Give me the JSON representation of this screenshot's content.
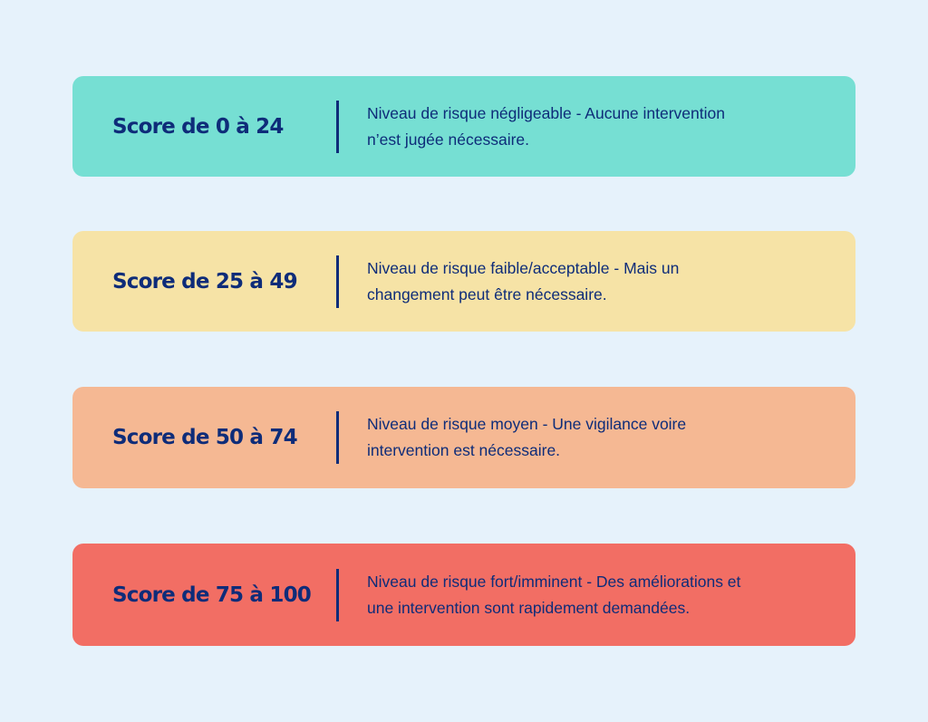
{
  "colors": {
    "background": "#E6F2FB",
    "text": "#0E2C79"
  },
  "cards": [
    {
      "title": "Score de 0 à 24",
      "description": "Niveau de risque négligeable -  Aucune intervention\nn’est jugée nécessaire.",
      "color": "#76DFD3"
    },
    {
      "title": "Score de 25 à 49",
      "description": "Niveau de risque faible/acceptable -  Mais un\nchangement peut être nécessaire.",
      "color": "#F6E3A6"
    },
    {
      "title": "Score de 50 à 74",
      "description": "Niveau de risque moyen -  Une vigilance voire\nintervention est nécessaire.",
      "color": "#F5B893"
    },
    {
      "title": "Score de 75 à 100",
      "description": "Niveau de risque fort/imminent -  Des améliorations et\nune intervention sont rapidement demandées.",
      "color": "#F26E64"
    }
  ]
}
